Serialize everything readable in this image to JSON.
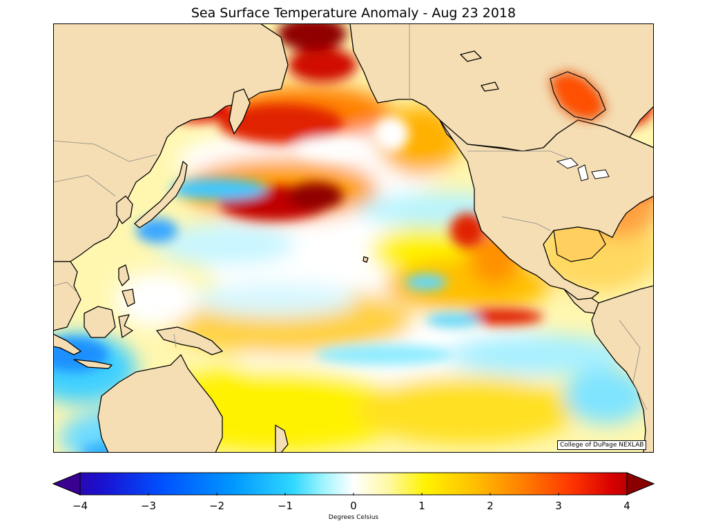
{
  "title": "Sea Surface Temperature Anomaly - Aug 23 2018",
  "credit": "College of DuPage NEXLAB",
  "colorbar": {
    "label": "Degrees Celsius",
    "ticks": [
      "−4",
      "−3",
      "−2",
      "−1",
      "0",
      "1",
      "2",
      "3",
      "4"
    ],
    "colors": [
      "#3a0090",
      "#1a10d0",
      "#0050ff",
      "#0098ff",
      "#30d8ff",
      "#a0f4ff",
      "#ffffff",
      "#fff8a0",
      "#fff200",
      "#ffc000",
      "#ff8000",
      "#ff3800",
      "#d80000",
      "#8a0000"
    ]
  },
  "colors": {
    "land": "#f5deb3",
    "coast": "#000000",
    "border": "#888888"
  }
}
